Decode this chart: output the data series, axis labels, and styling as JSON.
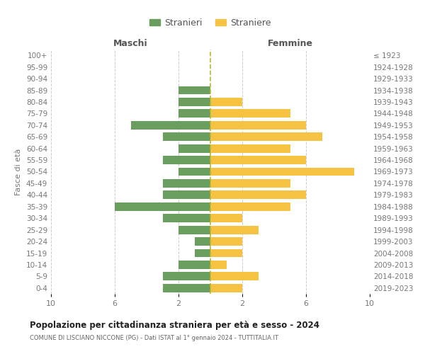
{
  "age_groups": [
    "0-4",
    "5-9",
    "10-14",
    "15-19",
    "20-24",
    "25-29",
    "30-34",
    "35-39",
    "40-44",
    "45-49",
    "50-54",
    "55-59",
    "60-64",
    "65-69",
    "70-74",
    "75-79",
    "80-84",
    "85-89",
    "90-94",
    "95-99",
    "100+"
  ],
  "birth_years": [
    "2019-2023",
    "2014-2018",
    "2009-2013",
    "2004-2008",
    "1999-2003",
    "1994-1998",
    "1989-1993",
    "1984-1988",
    "1979-1983",
    "1974-1978",
    "1969-1973",
    "1964-1968",
    "1959-1963",
    "1954-1958",
    "1949-1953",
    "1944-1948",
    "1939-1943",
    "1934-1938",
    "1929-1933",
    "1924-1928",
    "≤ 1923"
  ],
  "maschi": [
    3,
    3,
    2,
    1,
    1,
    2,
    3,
    6,
    3,
    3,
    2,
    3,
    2,
    3,
    5,
    2,
    2,
    2,
    0,
    0,
    0
  ],
  "femmine": [
    2,
    3,
    1,
    2,
    2,
    3,
    2,
    5,
    6,
    5,
    9,
    6,
    5,
    7,
    6,
    5,
    2,
    0,
    0,
    0,
    0
  ],
  "male_color": "#6a9e5e",
  "female_color": "#f5c242",
  "center_line_color": "#b5b830",
  "background_color": "#ffffff",
  "grid_color": "#cccccc",
  "title": "Popolazione per cittadinanza straniera per età e sesso - 2024",
  "subtitle": "COMUNE DI LISCIANO NICCONE (PG) - Dati ISTAT al 1° gennaio 2024 - TUTTITALIA.IT",
  "ylabel_left": "Fasce di età",
  "label_maschi": "Maschi",
  "label_femmine": "Femmine",
  "legend_stranieri": "Stranieri",
  "legend_straniere": "Straniere",
  "xlim": 10,
  "bar_height": 0.72
}
